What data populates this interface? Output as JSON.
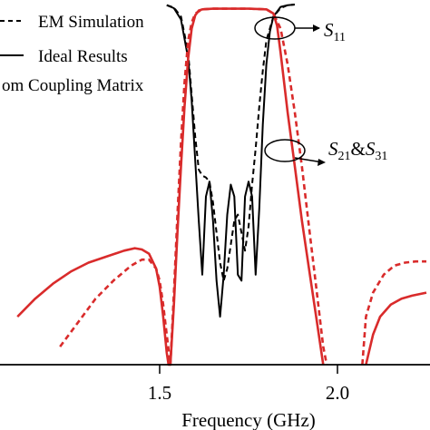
{
  "chart_data": {
    "type": "line",
    "xlabel": "Frequency (GHz)",
    "xlim": [
      1.1,
      2.25
    ],
    "ylim": [
      -60,
      0
    ],
    "grid": false,
    "x_ticks": [
      {
        "value": 1.5,
        "label": "1.5"
      },
      {
        "value": 2.0,
        "label": "2.0"
      }
    ],
    "legend": {
      "placement": "top-left",
      "entries": [
        {
          "label": "EM Simulation",
          "style": "dashed"
        },
        {
          "label": "Ideal Results",
          "style": "solid"
        },
        {
          "label": "om Coupling Matrix",
          "style": "none"
        }
      ]
    },
    "annotations": {
      "s11": {
        "main": "S",
        "sub": "11"
      },
      "s21_s31": {
        "main1": "S",
        "sub1": "21",
        "amp": "&",
        "main2": "S",
        "sub2": "31"
      }
    },
    "series": [
      {
        "style": "dashed",
        "color": "#000000",
        "x": [
          1.52,
          1.54,
          1.56,
          1.58,
          1.6,
          1.61,
          1.62,
          1.63,
          1.64,
          1.65,
          1.66,
          1.67,
          1.68,
          1.69,
          1.7,
          1.71,
          1.72,
          1.73,
          1.74,
          1.75,
          1.76,
          1.77,
          1.78,
          1.79,
          1.8,
          1.82,
          1.84,
          1.86,
          1.88
        ],
        "y": [
          -0.1,
          -0.5,
          -2,
          -8,
          -22,
          -27.5,
          -28.5,
          -28.8,
          -29.5,
          -33,
          -38,
          -43,
          -46,
          -44,
          -40,
          -36,
          -35,
          -38,
          -41,
          -37,
          -30,
          -24,
          -17,
          -11,
          -6,
          -2,
          -0.6,
          -0.1,
          0
        ]
      },
      {
        "style": "solid",
        "color": "#000000",
        "x": [
          1.52,
          1.54,
          1.56,
          1.58,
          1.59,
          1.6,
          1.61,
          1.62,
          1.63,
          1.64,
          1.65,
          1.66,
          1.67,
          1.68,
          1.69,
          1.7,
          1.71,
          1.72,
          1.73,
          1.74,
          1.75,
          1.76,
          1.77,
          1.78,
          1.79,
          1.8,
          1.81,
          1.82,
          1.84,
          1.86,
          1.88
        ],
        "y": [
          -0.1,
          -0.6,
          -2.5,
          -9,
          -16,
          -26,
          -36,
          -45,
          -32,
          -29.5,
          -36,
          -46,
          -52,
          -45,
          -35,
          -30,
          -32,
          -45,
          -46,
          -32,
          -29.5,
          -32,
          -45,
          -34,
          -20,
          -10,
          -4.5,
          -2,
          -0.4,
          -0.1,
          0
        ]
      },
      {
        "style": "solid",
        "color": "#d92b2b",
        "x": [
          1.1,
          1.15,
          1.2,
          1.25,
          1.3,
          1.35,
          1.4,
          1.43,
          1.45,
          1.47,
          1.49,
          1.5,
          1.51,
          1.52,
          1.525,
          1.53,
          1.54,
          1.55,
          1.56,
          1.57,
          1.58,
          1.59,
          1.6,
          1.61,
          1.62,
          1.65,
          1.7,
          1.75,
          1.8,
          1.82,
          1.83,
          1.84,
          1.86,
          1.88,
          1.9,
          1.92,
          1.94,
          1.96
        ],
        "y": [
          -52,
          -49,
          -46.5,
          -44.5,
          -43,
          -42,
          -41,
          -40.6,
          -40.8,
          -41.5,
          -44,
          -47,
          -52,
          -58,
          -60,
          -60,
          -50,
          -38,
          -27,
          -17,
          -9,
          -4,
          -1.8,
          -1,
          -0.8,
          -0.7,
          -0.7,
          -0.7,
          -0.8,
          -1.5,
          -3.5,
          -8,
          -18,
          -27,
          -36,
          -44,
          -52,
          -60
        ]
      },
      {
        "style": "dashed",
        "color": "#d92b2b",
        "x": [
          1.22,
          1.27,
          1.32,
          1.37,
          1.42,
          1.45,
          1.47,
          1.49,
          1.5,
          1.51,
          1.52,
          1.53,
          1.54,
          1.55,
          1.56,
          1.57,
          1.58,
          1.59,
          1.6,
          1.62,
          1.65,
          1.7,
          1.75,
          1.8,
          1.82,
          1.84,
          1.86,
          1.88,
          1.9,
          1.92,
          1.94,
          1.96,
          1.97
        ],
        "y": [
          -57,
          -53,
          -49,
          -46,
          -43.5,
          -42.5,
          -42.5,
          -44,
          -46,
          -50,
          -55,
          -60,
          -48,
          -35,
          -23,
          -13,
          -6,
          -3,
          -1.5,
          -0.8,
          -0.7,
          -0.7,
          -0.7,
          -0.8,
          -1.5,
          -4,
          -10,
          -18,
          -27,
          -37,
          -47,
          -57,
          -60
        ]
      },
      {
        "style": "dashed",
        "color": "#d92b2b",
        "x": [
          2.07,
          2.08,
          2.1,
          2.13,
          2.16,
          2.19,
          2.22,
          2.25
        ],
        "y": [
          -60,
          -52,
          -48,
          -45,
          -43.5,
          -43,
          -42.8,
          -42.8
        ]
      },
      {
        "style": "solid",
        "color": "#d92b2b",
        "x": [
          2.08,
          2.1,
          2.12,
          2.15,
          2.18,
          2.21,
          2.25
        ],
        "y": [
          -60,
          -55,
          -52,
          -50,
          -49,
          -48.5,
          -48
        ]
      }
    ]
  }
}
